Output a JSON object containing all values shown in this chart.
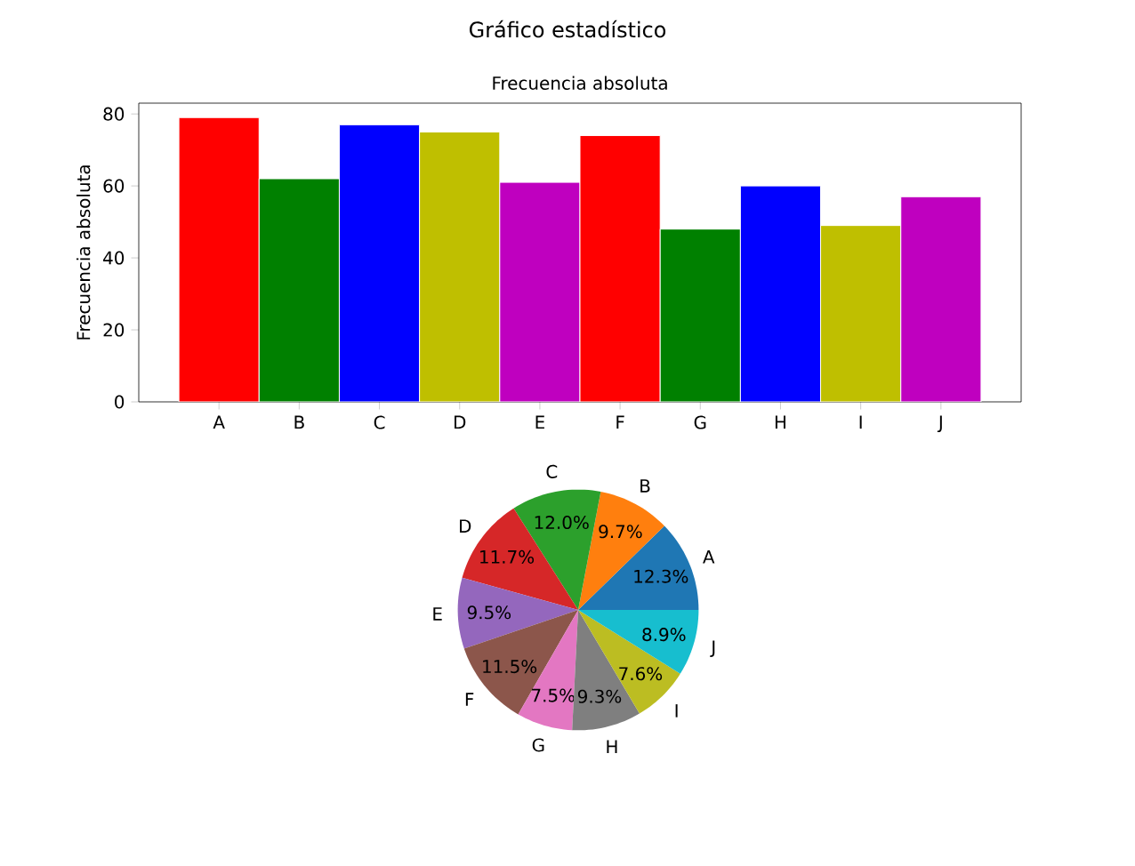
{
  "chart_data": [
    {
      "type": "bar",
      "title": "Gráfico estadístico",
      "subtitle": "Frecuencia absoluta",
      "ylabel": "Frecuencia absoluta",
      "categories": [
        "A",
        "B",
        "C",
        "D",
        "E",
        "F",
        "G",
        "H",
        "I",
        "J"
      ],
      "values": [
        79,
        62,
        77,
        75,
        61,
        74,
        48,
        60,
        49,
        57
      ],
      "colors": [
        "#ff0000",
        "#008000",
        "#0000ff",
        "#bfbf00",
        "#bf00bf",
        "#ff0000",
        "#008000",
        "#0000ff",
        "#bfbf00",
        "#bf00bf"
      ],
      "ylim": [
        0,
        83
      ],
      "yticks": [
        0,
        20,
        40,
        60,
        80
      ]
    },
    {
      "type": "pie",
      "categories": [
        "A",
        "B",
        "C",
        "D",
        "E",
        "F",
        "G",
        "H",
        "I",
        "J"
      ],
      "values": [
        12.3,
        9.7,
        12.0,
        11.7,
        9.5,
        11.5,
        7.5,
        9.3,
        7.6,
        8.9
      ],
      "colors": [
        "#1f77b4",
        "#ff7f0e",
        "#2ca02c",
        "#d62728",
        "#9467bd",
        "#8c564b",
        "#e377c2",
        "#7f7f7f",
        "#bcbd22",
        "#17becf"
      ],
      "value_labels": [
        "12.3%",
        "9.7%",
        "12.0%",
        "11.7%",
        "9.5%",
        "11.5%",
        "7.5%",
        "9.3%",
        "7.6%",
        "8.9%"
      ]
    }
  ]
}
